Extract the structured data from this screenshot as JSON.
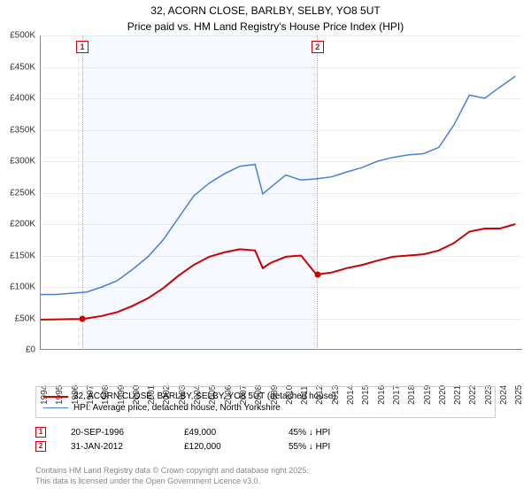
{
  "title_line1": "32, ACORN CLOSE, BARLBY, SELBY, YO8 5UT",
  "title_line2": "Price paid vs. HM Land Registry's House Price Index (HPI)",
  "chart": {
    "type": "line",
    "background_color": "#ffffff",
    "grid_color": "#eeeeee",
    "axis_color": "#888888",
    "shade_color": "rgba(100,150,255,0.06)",
    "x_years": [
      1994,
      1995,
      1996,
      1997,
      1998,
      1999,
      2000,
      2001,
      2002,
      2003,
      2004,
      2005,
      2006,
      2007,
      2008,
      2009,
      2010,
      2011,
      2012,
      2013,
      2014,
      2015,
      2016,
      2017,
      2018,
      2019,
      2020,
      2021,
      2022,
      2023,
      2024,
      2025
    ],
    "xlim": [
      1994,
      2025.5
    ],
    "ylim": [
      0,
      500000
    ],
    "ytick_step": 50000,
    "yticks": [
      "£0",
      "£50K",
      "£100K",
      "£150K",
      "£200K",
      "£250K",
      "£300K",
      "£350K",
      "£400K",
      "£450K",
      "£500K"
    ],
    "label_fontsize": 10,
    "series": [
      {
        "name": "32, ACORN CLOSE, BARLBY, SELBY, YO8 5UT (detached house)",
        "color": "#cc0000",
        "line_width": 2,
        "x": [
          1994,
          1995,
          1996,
          1996.72,
          1997,
          1998,
          1999,
          2000,
          2001,
          2002,
          2003,
          2004,
          2005,
          2006,
          2007,
          2008,
          2008.5,
          2009,
          2010,
          2011,
          2012,
          2012.08,
          2013,
          2014,
          2015,
          2016,
          2017,
          2018,
          2019,
          2020,
          2021,
          2022,
          2023,
          2024,
          2025
        ],
        "y": [
          48000,
          48500,
          49000,
          49000,
          50000,
          54000,
          60000,
          70000,
          82000,
          98000,
          118000,
          135000,
          148000,
          155000,
          160000,
          158000,
          130000,
          138000,
          148000,
          150000,
          120000,
          120000,
          123000,
          130000,
          135000,
          142000,
          148000,
          150000,
          152000,
          158000,
          170000,
          188000,
          193000,
          193000,
          200000
        ]
      },
      {
        "name": "HPI: Average price, detached house, North Yorkshire",
        "color": "#4a7fd6",
        "line_width": 1.5,
        "x": [
          1994,
          1995,
          1996,
          1997,
          1998,
          1999,
          2000,
          2001,
          2002,
          2003,
          2004,
          2005,
          2006,
          2007,
          2008,
          2008.5,
          2009,
          2010,
          2011,
          2012,
          2013,
          2014,
          2015,
          2016,
          2017,
          2018,
          2019,
          2020,
          2021,
          2022,
          2023,
          2024,
          2025
        ],
        "y": [
          88000,
          88000,
          90000,
          92000,
          100000,
          110000,
          128000,
          148000,
          175000,
          210000,
          245000,
          265000,
          280000,
          292000,
          295000,
          248000,
          258000,
          278000,
          270000,
          272000,
          275000,
          283000,
          290000,
          300000,
          306000,
          310000,
          312000,
          322000,
          358000,
          405000,
          400000,
          418000,
          435000
        ]
      }
    ],
    "shaded_ranges": [
      {
        "from": 1996.72,
        "to": 2012.08
      }
    ],
    "markers": [
      {
        "id": "1",
        "x": 1996.72,
        "y": 49000,
        "color": "#cc0000"
      },
      {
        "id": "2",
        "x": 2012.08,
        "y": 120000,
        "color": "#cc0000"
      }
    ]
  },
  "legend": {
    "series1": "32, ACORN CLOSE, BARLBY, SELBY, YO8 5UT (detached house)",
    "series2": "HPI: Average price, detached house, North Yorkshire"
  },
  "table": {
    "rows": [
      {
        "id": "1",
        "date": "20-SEP-1996",
        "price": "£49,000",
        "pct": "45% ↓ HPI",
        "color": "#cc0000"
      },
      {
        "id": "2",
        "date": "31-JAN-2012",
        "price": "£120,000",
        "pct": "55% ↓ HPI",
        "color": "#cc0000"
      }
    ]
  },
  "footer": {
    "line1": "Contains HM Land Registry data © Crown copyright and database right 2025.",
    "line2": "This data is licensed under the Open Government Licence v3.0."
  }
}
